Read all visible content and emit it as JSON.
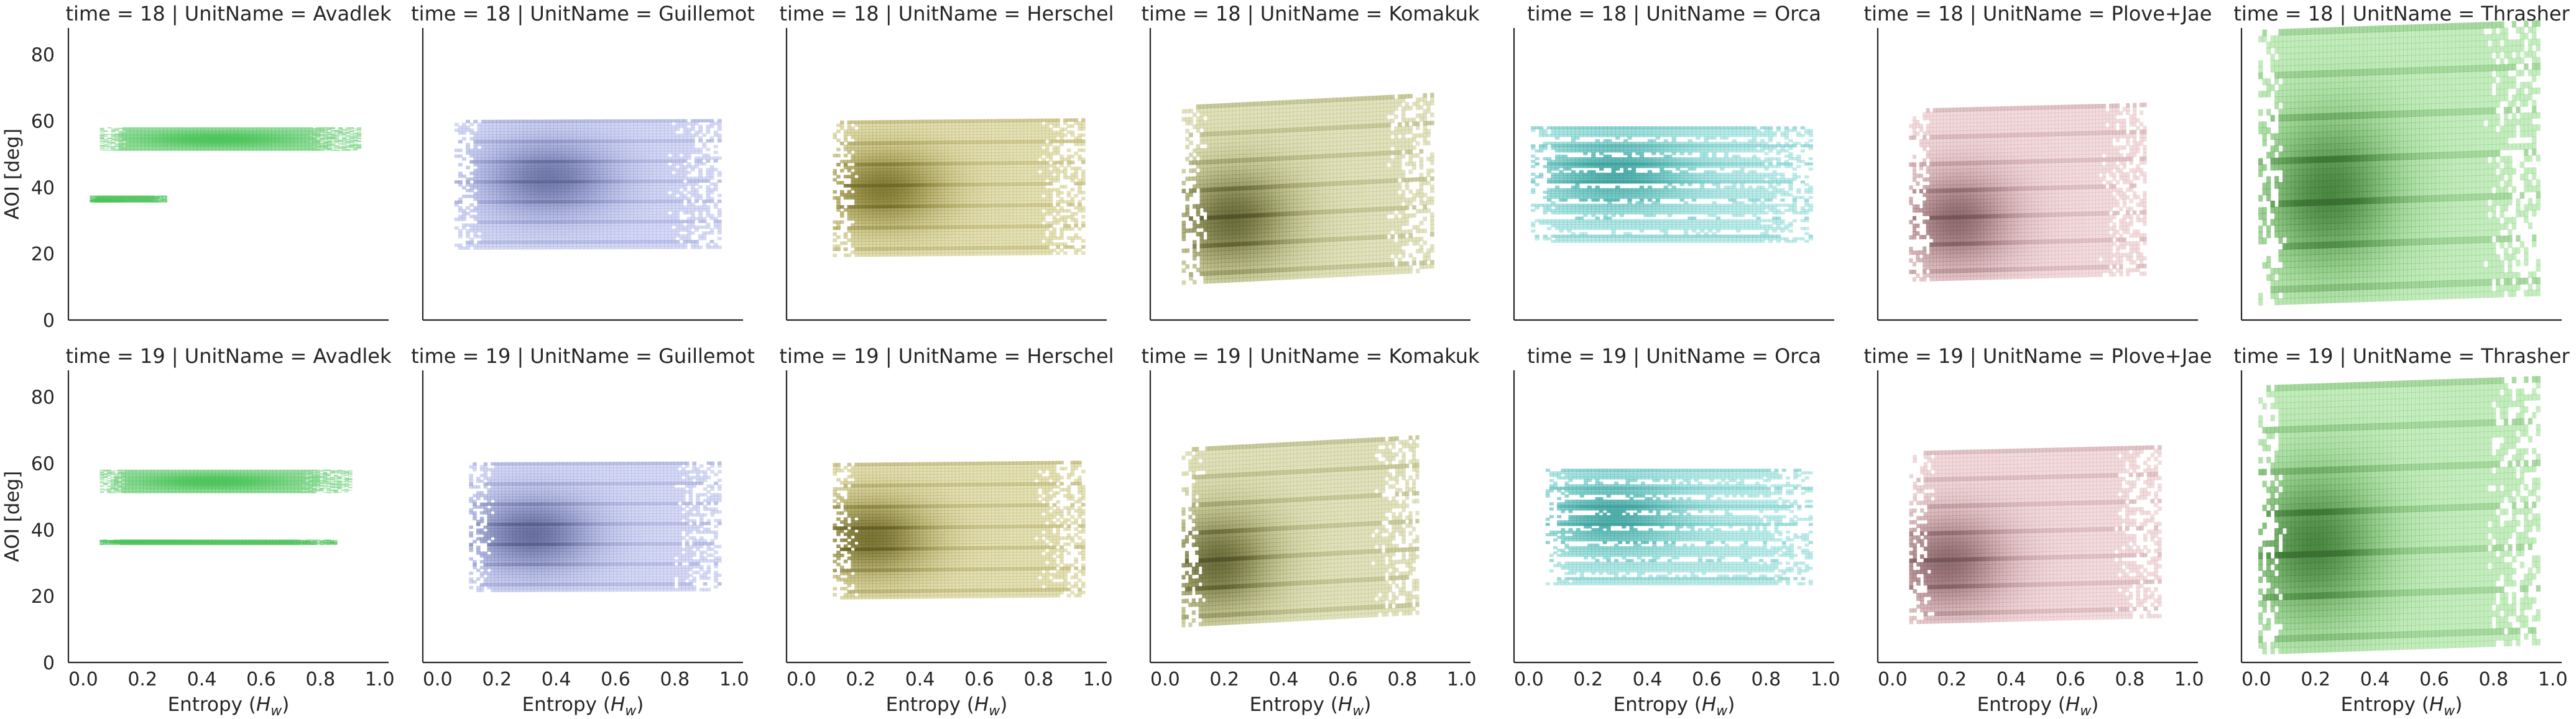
{
  "chart_data": {
    "type": "scatter",
    "layout": "facet-grid",
    "rows": 2,
    "cols": 7,
    "xlabel_text": "Entropy (",
    "xlabel_sym": "H",
    "xlabel_sub": "w",
    "xlabel_close": ")",
    "ylabel": "AOI [deg]",
    "xlim": [
      -0.05,
      1.03
    ],
    "ylim": [
      0,
      88
    ],
    "xticks": [
      "0.0",
      "0.2",
      "0.4",
      "0.6",
      "0.8",
      "1.0"
    ],
    "yticks": [
      "0",
      "20",
      "40",
      "60",
      "80"
    ],
    "xtick_values": [
      0.0,
      0.2,
      0.4,
      0.6,
      0.8,
      1.0
    ],
    "ytick_values": [
      0,
      20,
      40,
      60,
      80
    ],
    "grid": false,
    "panels": [
      {
        "title": "time = 18 | UnitName = Avadlek",
        "color": "#4cc45a",
        "clouds": [
          {
            "x0": 0.05,
            "x1": 0.93,
            "y0": 51,
            "y1": 58,
            "density": [
              0.45,
              0.5
            ],
            "dark": 0
          },
          {
            "x0": 0.02,
            "x1": 0.28,
            "y0": 35.5,
            "y1": 37.5,
            "density": [
              0.1,
              0.2
            ],
            "dark": 0
          }
        ]
      },
      {
        "title": "time = 18 | UnitName = Guillemot",
        "color": "#8b96e0",
        "clouds": [
          {
            "x0": 0.05,
            "x1": 0.95,
            "y0": 21,
            "y1": 60,
            "skew": 0.02,
            "density": [
              0.35,
              0.55
            ],
            "dark": 0.5
          }
        ]
      },
      {
        "title": "time = 18 | UnitName = Herschel",
        "color": "#b3a83a",
        "clouds": [
          {
            "x0": 0.1,
            "x1": 0.95,
            "y0": 19,
            "y1": 60,
            "skew": 0.05,
            "density": [
              0.2,
              0.5
            ],
            "dark": 0.6
          }
        ]
      },
      {
        "title": "time = 18 | UnitName = Komakuk",
        "color": "#a9ad4c",
        "clouds": [
          {
            "x0": 0.05,
            "x1": 0.9,
            "y0": 12,
            "y1": 66,
            "skew": 0.2,
            "density": [
              0.2,
              0.35
            ],
            "dark": 0.8
          }
        ]
      },
      {
        "title": "time = 18 | UnitName = Orca",
        "color": "#4cc5c0",
        "clouds": [
          {
            "x0": 0.0,
            "x1": 0.95,
            "y0": 23,
            "y1": 58,
            "density": [
              0.3,
              0.6
            ],
            "dark": 0.3,
            "banded": true
          }
        ]
      },
      {
        "title": "time = 18 | UnitName = Plove+Jae",
        "color": "#d89aa0",
        "clouds": [
          {
            "x0": 0.05,
            "x1": 0.85,
            "y0": 12,
            "y1": 64,
            "skew": 0.1,
            "density": [
              0.2,
              0.35
            ],
            "dark": 0.7
          }
        ]
      },
      {
        "title": "time = 18 | UnitName = Thrasher",
        "color": "#5fc94f",
        "clouds": [
          {
            "x0": 0.0,
            "x1": 0.95,
            "y0": 5,
            "y1": 88,
            "skew": 0.1,
            "density": [
              0.25,
              0.4
            ],
            "dark": 0.7
          }
        ]
      },
      {
        "title": "time = 19 | UnitName = Avadlek",
        "color": "#4cc45a",
        "clouds": [
          {
            "x0": 0.05,
            "x1": 0.9,
            "y0": 51,
            "y1": 58,
            "density": [
              0.45,
              0.5
            ],
            "dark": 0
          },
          {
            "x0": 0.05,
            "x1": 0.85,
            "y0": 35.5,
            "y1": 37,
            "density": [
              0.1,
              0.8
            ],
            "dark": 0
          }
        ]
      },
      {
        "title": "time = 19 | UnitName = Guillemot",
        "color": "#8b96e0",
        "clouds": [
          {
            "x0": 0.1,
            "x1": 0.95,
            "y0": 21,
            "y1": 60,
            "skew": 0.02,
            "density": [
              0.25,
              0.45
            ],
            "dark": 0.6
          }
        ]
      },
      {
        "title": "time = 19 | UnitName = Herschel",
        "color": "#b3a83a",
        "clouds": [
          {
            "x0": 0.1,
            "x1": 0.95,
            "y0": 19,
            "y1": 60,
            "skew": 0.05,
            "density": [
              0.15,
              0.45
            ],
            "dark": 0.7
          }
        ]
      },
      {
        "title": "time = 19 | UnitName = Komakuk",
        "color": "#a9ad4c",
        "clouds": [
          {
            "x0": 0.05,
            "x1": 0.85,
            "y0": 12,
            "y1": 66,
            "skew": 0.2,
            "density": [
              0.15,
              0.35
            ],
            "dark": 0.8
          }
        ]
      },
      {
        "title": "time = 19 | UnitName = Orca",
        "color": "#4cc5c0",
        "clouds": [
          {
            "x0": 0.05,
            "x1": 0.95,
            "y0": 23,
            "y1": 58,
            "density": [
              0.25,
              0.6
            ],
            "dark": 0.3,
            "banded": true
          }
        ]
      },
      {
        "title": "time = 19 | UnitName = Plove+Jae",
        "color": "#d89aa0",
        "clouds": [
          {
            "x0": 0.05,
            "x1": 0.9,
            "y0": 12,
            "y1": 64,
            "skew": 0.1,
            "density": [
              0.15,
              0.35
            ],
            "dark": 0.7
          }
        ]
      },
      {
        "title": "time = 19 | UnitName = Thrasher",
        "color": "#5fc94f",
        "clouds": [
          {
            "x0": 0.0,
            "x1": 0.95,
            "y0": 3,
            "y1": 84,
            "skew": 0.1,
            "density": [
              0.2,
              0.4
            ],
            "dark": 0.7
          }
        ]
      }
    ]
  }
}
